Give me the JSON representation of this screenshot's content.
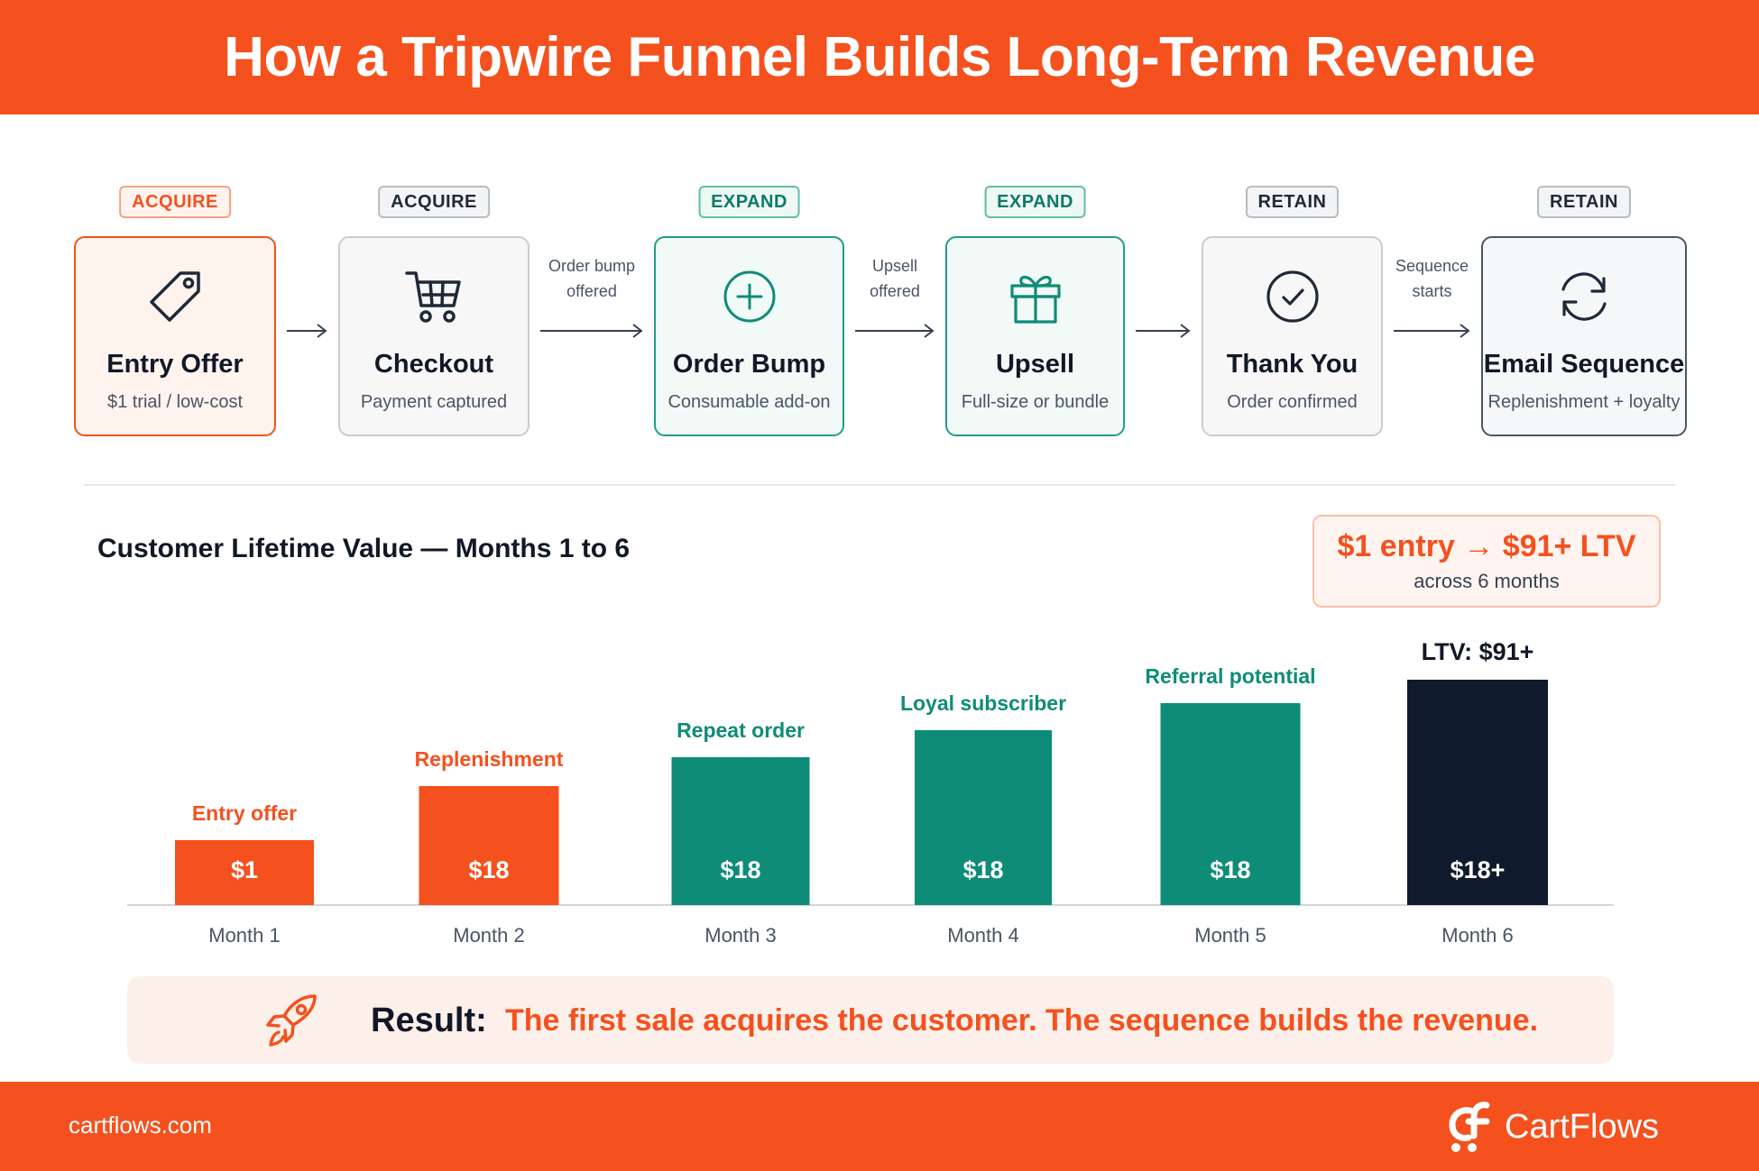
{
  "header": {
    "title": "How a Tripwire Funnel Builds Long-Term Revenue"
  },
  "stages": [
    {
      "badge": "ACQUIRE",
      "title": "Entry Offer",
      "subtitle": "$1 trial / low-cost",
      "icon": "price-tag-icon",
      "tone": "orange"
    },
    {
      "badge": "ACQUIRE",
      "title": "Checkout",
      "subtitle": "Payment captured",
      "icon": "shopping-cart-icon",
      "tone": "gray"
    },
    {
      "badge": "EXPAND",
      "title": "Order Bump",
      "subtitle": "Consumable add-on",
      "icon": "plus-circle-icon",
      "tone": "green"
    },
    {
      "badge": "EXPAND",
      "title": "Upsell",
      "subtitle": "Full-size or bundle",
      "icon": "gift-icon",
      "tone": "green"
    },
    {
      "badge": "RETAIN",
      "title": "Thank You",
      "subtitle": "Order confirmed",
      "icon": "check-circle-icon",
      "tone": "gray"
    },
    {
      "badge": "RETAIN",
      "title": "Email Sequence",
      "subtitle": "Replenishment + loyalty",
      "icon": "refresh-cycle-icon",
      "tone": "navy"
    }
  ],
  "connectors": [
    {
      "line1": "",
      "line2": ""
    },
    {
      "line1": "Order bump",
      "line2": "offered"
    },
    {
      "line1": "Upsell",
      "line2": "offered"
    },
    {
      "line1": "",
      "line2": ""
    },
    {
      "line1": "Sequence",
      "line2": "starts"
    }
  ],
  "chart_section": {
    "title": "Customer Lifetime Value — Months 1 to 6",
    "callout_main": "$1 entry → $91+ LTV",
    "callout_sub": "across 6 months"
  },
  "chart_data": {
    "type": "bar",
    "title": "Customer Lifetime Value — Months 1 to 6",
    "categories": [
      "Month 1",
      "Month 2",
      "Month 3",
      "Month 4",
      "Month 5",
      "Month 6"
    ],
    "values": [
      1,
      18,
      18,
      18,
      18,
      18
    ],
    "value_labels": [
      "$1",
      "$18",
      "$18",
      "$18",
      "$18",
      "$18+"
    ],
    "bar_labels": [
      "Entry offer",
      "Replenishment",
      "Repeat order",
      "Loyal subscriber",
      "Referral potential",
      "LTV: $91+"
    ],
    "bar_height_levels": [
      1,
      2,
      3,
      4,
      5,
      6
    ],
    "colors": [
      "#f4511e",
      "#f4511e",
      "#0e8c78",
      "#0e8c78",
      "#0e8c78",
      "#0f1b2d"
    ],
    "label_colors": [
      "#f4511e",
      "#f4511e",
      "#0e8c78",
      "#0e8c78",
      "#0e8c78",
      "#111827"
    ],
    "grid": false,
    "legend": "none"
  },
  "result": {
    "label": "Result:",
    "text": "The first sale acquires the customer. The sequence builds the revenue.",
    "icon": "rocket-icon"
  },
  "footer": {
    "site": "cartflows.com",
    "brand": "CartFlows",
    "logo": "cartflows-logo-icon"
  },
  "colors": {
    "accent": "#f4511e",
    "green": "#0e8c78",
    "navy": "#0f1b2d"
  }
}
